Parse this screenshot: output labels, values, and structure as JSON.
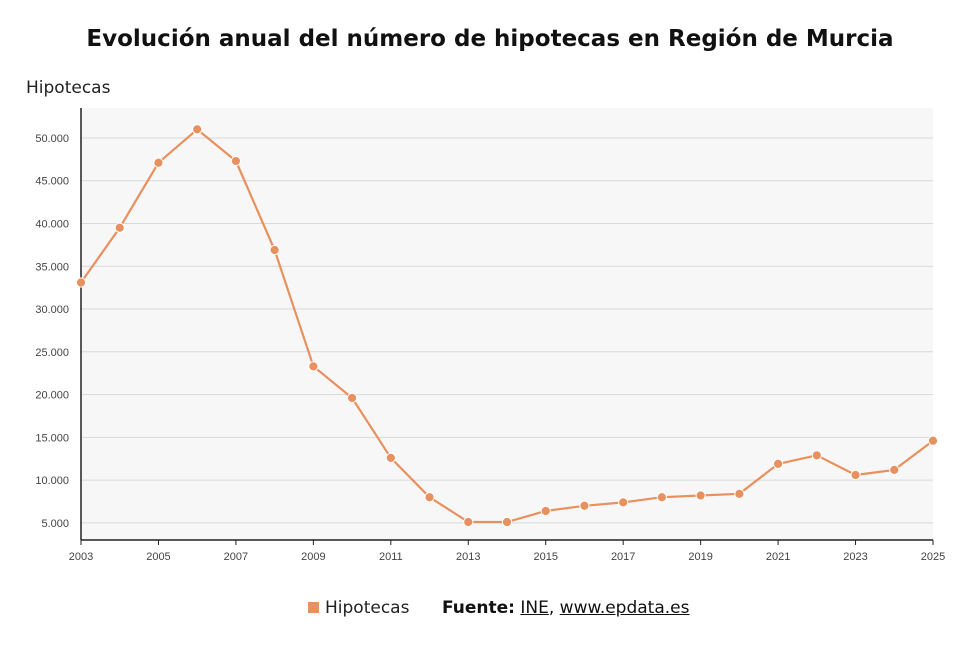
{
  "chart_data": {
    "type": "line",
    "title": "Evolución anual del número de hipotecas en Región de Murcia",
    "ylabel": "Hipotecas",
    "xlabel": "",
    "x": [
      2003,
      2004,
      2005,
      2006,
      2007,
      2008,
      2009,
      2010,
      2011,
      2012,
      2013,
      2014,
      2015,
      2016,
      2017,
      2018,
      2019,
      2020,
      2021,
      2022,
      2023,
      2024,
      2025
    ],
    "series": [
      {
        "name": "Hipotecas",
        "color": "#e8905e",
        "values": [
          33100,
          39500,
          47100,
          51000,
          47300,
          36900,
          23300,
          19600,
          12600,
          8000,
          5100,
          5100,
          6400,
          7000,
          7400,
          8000,
          8200,
          8400,
          11900,
          12900,
          10600,
          11200,
          14600
        ]
      }
    ],
    "ylim": [
      3000,
      53500
    ],
    "yticks": [
      5000,
      10000,
      15000,
      20000,
      25000,
      30000,
      35000,
      40000,
      45000,
      50000
    ],
    "ytick_labels": [
      "5.000",
      "10.000",
      "15.000",
      "20.000",
      "25.000",
      "30.000",
      "35.000",
      "40.000",
      "45.000",
      "50.000"
    ],
    "xticks": [
      "2003",
      "2005",
      "2007",
      "2009",
      "2011",
      "2013",
      "2015",
      "2017",
      "2019",
      "2021",
      "2023",
      "2025"
    ],
    "grid": true,
    "legend": "bottom"
  },
  "legend": {
    "label": "Hipotecas",
    "color": "#e8905e"
  },
  "source": {
    "prefix": "Fuente:",
    "link1": "INE",
    "separator": ",",
    "link2": "www.epdata.es"
  }
}
